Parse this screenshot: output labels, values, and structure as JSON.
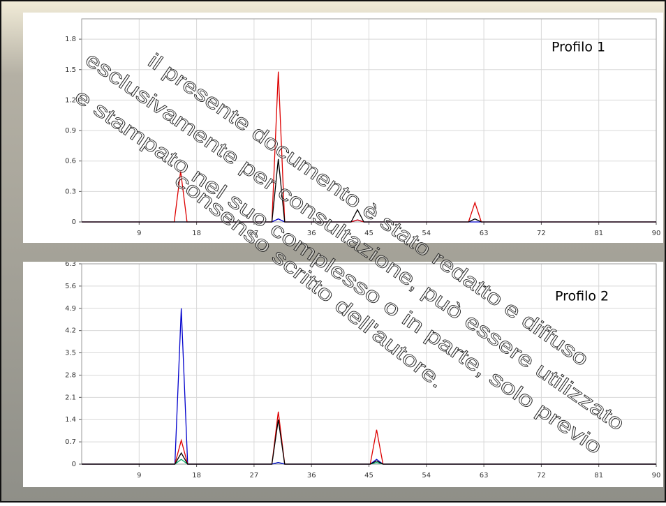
{
  "chart_data": [
    {
      "type": "line",
      "title": "Profilo 1",
      "x": [
        0,
        14.5,
        15.5,
        16.5,
        29.8,
        30.8,
        31.8,
        42.2,
        43.2,
        44.2,
        60.6,
        61.6,
        62.6,
        90
      ],
      "series": [
        {
          "color": "#0000cc",
          "values": [
            0,
            0,
            0,
            0,
            0,
            0.03,
            0,
            0,
            0.02,
            0,
            0,
            0,
            0,
            0
          ]
        },
        {
          "color": "#dd0000",
          "values": [
            0,
            0,
            0.5,
            0,
            0,
            1.48,
            0,
            0,
            0.02,
            0,
            0,
            0.19,
            0,
            0
          ]
        },
        {
          "color": "#000000",
          "values": [
            0,
            0,
            0,
            0,
            0,
            0.62,
            0,
            0,
            0.12,
            0,
            0,
            0.03,
            0,
            0
          ]
        }
      ],
      "xlim": [
        0,
        90
      ],
      "xticks": [
        9,
        18,
        27,
        36,
        45,
        54,
        63,
        72,
        81,
        90
      ],
      "ylim": [
        0,
        2.0
      ],
      "yticks": [
        0,
        0.3,
        0.6,
        0.9,
        1.2,
        1.5,
        1.8
      ],
      "grid": true
    },
    {
      "type": "line",
      "title": "Profilo 2",
      "x": [
        0,
        14.6,
        15.6,
        16.6,
        29.8,
        30.8,
        31.8,
        45.2,
        46.2,
        47.2,
        90
      ],
      "series": [
        {
          "color": "#00aa66",
          "values": [
            0,
            0,
            0.15,
            0,
            0,
            0.05,
            0,
            0,
            0.05,
            0,
            0
          ]
        },
        {
          "color": "#0000cc",
          "values": [
            0,
            0,
            4.9,
            0,
            0,
            0.05,
            0,
            0,
            0.15,
            0,
            0
          ]
        },
        {
          "color": "#dd0000",
          "values": [
            0,
            0,
            0.75,
            0,
            0,
            1.65,
            0,
            0,
            1.08,
            0,
            0
          ]
        },
        {
          "color": "#000000",
          "values": [
            0,
            0,
            0.35,
            0,
            0,
            1.4,
            0,
            0,
            0.1,
            0,
            0
          ]
        }
      ],
      "xlim": [
        0,
        90
      ],
      "xticks": [
        9,
        18,
        27,
        36,
        45,
        54,
        63,
        72,
        81,
        90
      ],
      "ylim": [
        0,
        6.3
      ],
      "yticks": [
        0,
        0.7,
        1.4,
        2.1,
        2.8,
        3.5,
        4.2,
        4.9,
        5.6,
        6.3
      ],
      "grid": true
    }
  ],
  "watermark": [
    "il presente documento è stato redatto e diffuso",
    "esclusivamente per consultazione, può essere utilizzato",
    "e stampato  nel suo complesso o in parte,  solo previo",
    "consenso scritto dell'autore."
  ]
}
